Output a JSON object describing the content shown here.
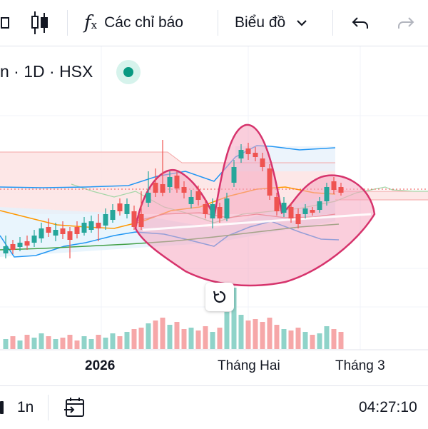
{
  "toolbar": {
    "indicators_label": "Các chỉ báo",
    "chart_type_label": "Biểu đồ"
  },
  "symbol": {
    "text": "n · 1D · HSX"
  },
  "xaxis": {
    "labels": [
      "2026",
      "Tháng Hai",
      "Tháng 3"
    ]
  },
  "bottom": {
    "range": "1n",
    "time": "04:27:10"
  },
  "colors": {
    "up": "#26a69a",
    "down": "#ef5350",
    "volume_up": "#8fd3c9",
    "volume_down": "#f6a7a8",
    "pattern_stroke": "#d6336c",
    "pattern_fill": "#f8bfd2"
  }
}
